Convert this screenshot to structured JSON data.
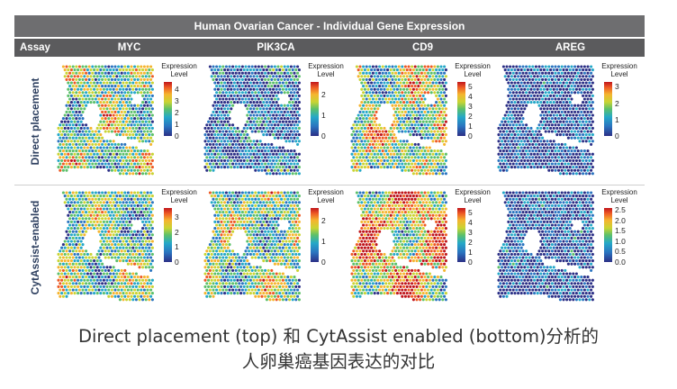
{
  "figure": {
    "title": "Human Ovarian Cancer - Individual Gene Expression",
    "assay_header": "Assay",
    "columns": [
      "MYC",
      "PIK3CA",
      "CD9",
      "AREG"
    ],
    "rows": [
      {
        "label": "Direct placement",
        "panels": [
          {
            "legend_title": "Expression Level",
            "ticks": [
              "4",
              "3",
              "2",
              "1",
              "0"
            ],
            "max": 4.6,
            "intensity": 0.55
          },
          {
            "legend_title": "Expression Level",
            "ticks": [
              "2",
              "1",
              "0"
            ],
            "max": 2.6,
            "intensity": 0.22
          },
          {
            "legend_title": "Expression Level",
            "ticks": [
              "5",
              "4",
              "3",
              "2",
              "1",
              "0"
            ],
            "max": 5.5,
            "intensity": 0.6
          },
          {
            "legend_title": "Expression Level",
            "ticks": [
              "3",
              "2",
              "1",
              "0"
            ],
            "max": 3.3,
            "intensity": 0.1
          }
        ]
      },
      {
        "label": "CytAssist-enabled",
        "panels": [
          {
            "legend_title": "Expression Level",
            "ticks": [
              "3",
              "2",
              "1",
              "0"
            ],
            "max": 3.6,
            "intensity": 0.5
          },
          {
            "legend_title": "Expression Level",
            "ticks": [
              "2",
              "1",
              "0"
            ],
            "max": 2.6,
            "intensity": 0.55
          },
          {
            "legend_title": "Expression Level",
            "ticks": [
              "5",
              "4",
              "3",
              "2",
              "1",
              "0"
            ],
            "max": 5.5,
            "intensity": 0.8
          },
          {
            "legend_title": "Expression Level",
            "ticks": [
              "2.5",
              "2.0",
              "1.5",
              "1.0",
              "0.5",
              "0.0"
            ],
            "max": 2.6,
            "intensity": 0.12
          }
        ]
      }
    ],
    "colormap": [
      "#2b2f86",
      "#2a74c0",
      "#25a8c8",
      "#5cc06a",
      "#c9d433",
      "#f5b52f",
      "#ee5a24",
      "#c0161c"
    ]
  },
  "caption": {
    "line1": "Direct placement (top) 和 CytAssist enabled (bottom)分析的",
    "line2": "人卵巢癌基因表达的对比"
  }
}
